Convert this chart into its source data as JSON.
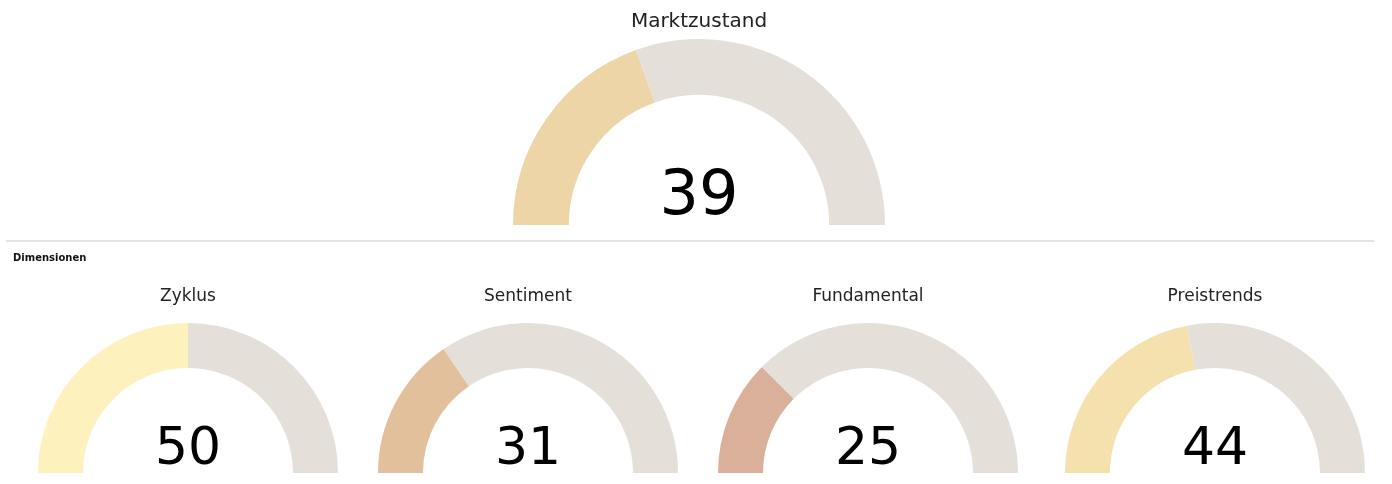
{
  "chart_data": [
    {
      "type": "donut",
      "title": "Marktzustand",
      "categories": [
        null,
        null
      ],
      "values": [
        39,
        61
      ],
      "colors": [
        "#edd5a8",
        "#e4dfd9"
      ],
      "annotations": [
        "39"
      ]
    },
    {
      "type": "other",
      "title": "Dimensionen"
    },
    {
      "type": "donut",
      "title": "Zyklus",
      "categories": [
        null,
        null
      ],
      "values": [
        50,
        50
      ],
      "colors": [
        "#fdf2bd",
        "#e4dfd9"
      ],
      "annotations": [
        "50"
      ]
    },
    {
      "type": "donut",
      "title": "Sentiment",
      "categories": [
        null,
        null
      ],
      "values": [
        31,
        69
      ],
      "colors": [
        "#e3c09c",
        "#e4dfd9"
      ],
      "annotations": [
        "31"
      ]
    },
    {
      "type": "donut",
      "title": "Fundamental",
      "categories": [
        null,
        null
      ],
      "values": [
        25,
        75
      ],
      "colors": [
        "#dbb09a",
        "#e4dfd9"
      ],
      "annotations": [
        "25"
      ]
    },
    {
      "type": "donut",
      "title": "Preistrends",
      "categories": [
        null,
        null
      ],
      "values": [
        44,
        56
      ],
      "colors": [
        "#f4e1ae",
        "#e4dfd9"
      ],
      "annotations": [
        "44"
      ]
    }
  ]
}
